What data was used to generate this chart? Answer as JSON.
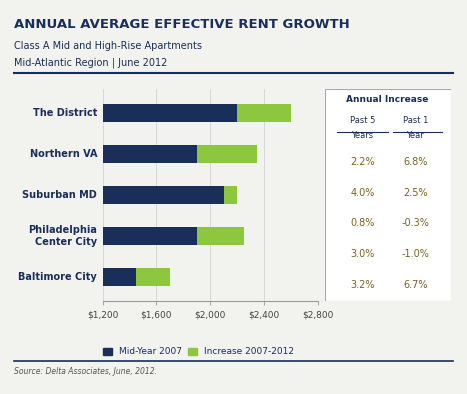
{
  "title": "ANNUAL AVERAGE EFFECTIVE RENT GROWTH",
  "subtitle1": "Class A Mid and High-Rise Apartments",
  "subtitle2": "Mid-Atlantic Region | June 2012",
  "source": "Source: Delta Associates, June, 2012.",
  "categories": [
    "The District",
    "Northern VA",
    "Suburban MD",
    "Philadelphia\nCenter City",
    "Baltimore City"
  ],
  "base_values": [
    2200,
    1900,
    2100,
    1900,
    1450
  ],
  "increase_values": [
    400,
    450,
    100,
    350,
    250
  ],
  "xlim": [
    1200,
    2800
  ],
  "xticks": [
    1200,
    1600,
    2000,
    2400,
    2800
  ],
  "xticklabels": [
    "$1,200",
    "$1,600",
    "$2,000",
    "$2,400",
    "$2,800"
  ],
  "bar_color_base": "#1a2e5a",
  "bar_color_increase": "#8dc63f",
  "legend_label_base": "Mid-Year 2007",
  "legend_label_increase": "Increase 2007-2012",
  "table_title": "Annual Increase",
  "table_data": [
    [
      "2.2%",
      "6.8%"
    ],
    [
      "4.0%",
      "2.5%"
    ],
    [
      "0.8%",
      "-0.3%"
    ],
    [
      "3.0%",
      "-1.0%"
    ],
    [
      "3.2%",
      "6.7%"
    ]
  ],
  "bg_color": "#f2f2ee",
  "text_color_dark": "#1a2e5a",
  "text_color_table_num": "#7a6020"
}
